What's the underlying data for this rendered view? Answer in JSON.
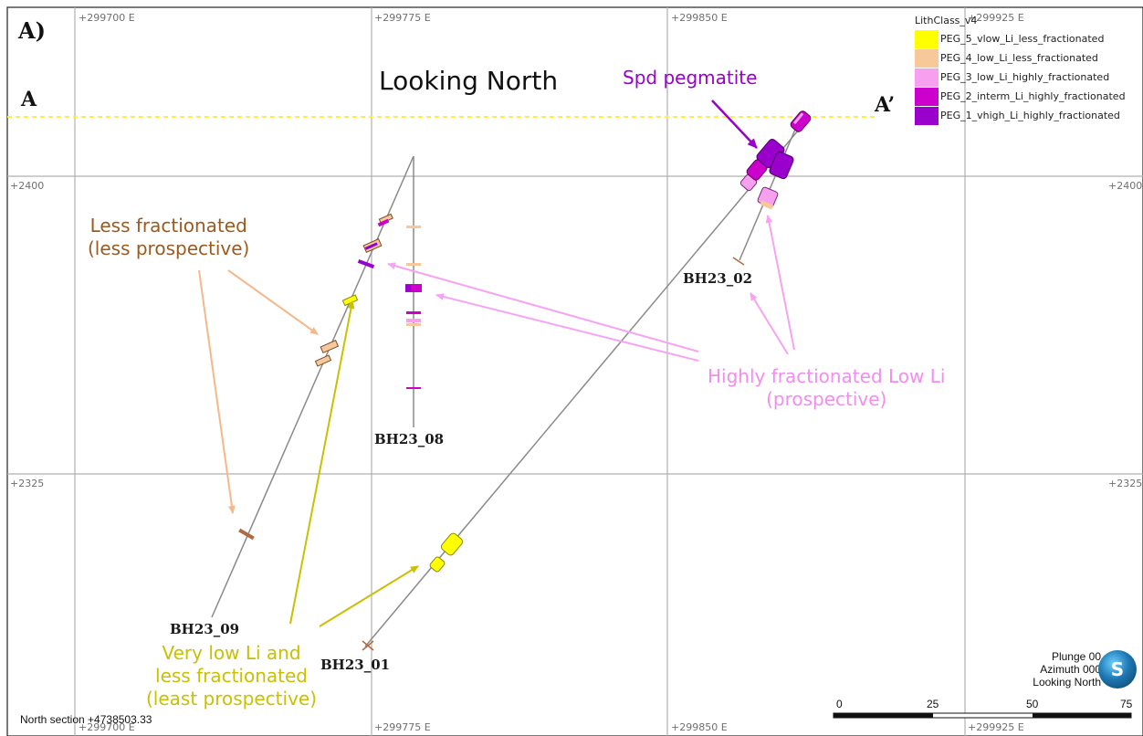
{
  "panel_label": "A)",
  "section_end_left": "A",
  "section_end_right": "A’",
  "view_title": "Looking North",
  "grid": {
    "top_labels": [
      "+299700 E",
      "+299775 E",
      "+299850 E",
      "+299925 E"
    ],
    "bottom_labels": [
      "+299700 E",
      "+299775 E",
      "+299850 E",
      "+299925 E"
    ],
    "left_labels": [
      "+2400",
      "+2325"
    ],
    "right_labels": [
      "+2400",
      "+2325"
    ]
  },
  "legend": {
    "title": "LithClass_v4",
    "items": [
      {
        "label": "PEG_5_vlow_Li_less_fractionated",
        "color": "#ffff00"
      },
      {
        "label": "PEG_4_low_Li_less_fractionated",
        "color": "#f7c99a"
      },
      {
        "label": "PEG_3_low_Li_highly_fractionated",
        "color": "#f8a0f0"
      },
      {
        "label": "PEG_2_interm_Li_highly_fractionated",
        "color": "#cc00cc"
      },
      {
        "label": "PEG_1_vhigh_Li_highly_fractionated",
        "color": "#9900cc"
      }
    ]
  },
  "boreholes": [
    "BH23_09",
    "BH23_08",
    "BH23_01",
    "BH23_02"
  ],
  "annotations": {
    "spd": {
      "text": "Spd pegmatite",
      "color": "#9900cc"
    },
    "less_fractionated": {
      "text": "Less fractionated\n(less prospective)",
      "color": "#9c5a1f"
    },
    "highly_fractionated": {
      "text": "Highly fractionated Low Li\n(prospective)",
      "color": "#f28cf0"
    },
    "very_low": {
      "text": "Very low Li and\nless fractionated\n(least prospective)",
      "color": "#c8c000"
    }
  },
  "north_section": "North section +4738503.33",
  "view_info": [
    "Plunge 00",
    "Azimuth 000",
    "Looking North"
  ],
  "compass_letter": "S",
  "scale_bar": {
    "ticks": [
      "0",
      "25",
      "50",
      "75"
    ]
  },
  "colors": {
    "section_line": "#ffee44",
    "grid": "#b0b0b0",
    "trace": "#8a8a8a"
  }
}
